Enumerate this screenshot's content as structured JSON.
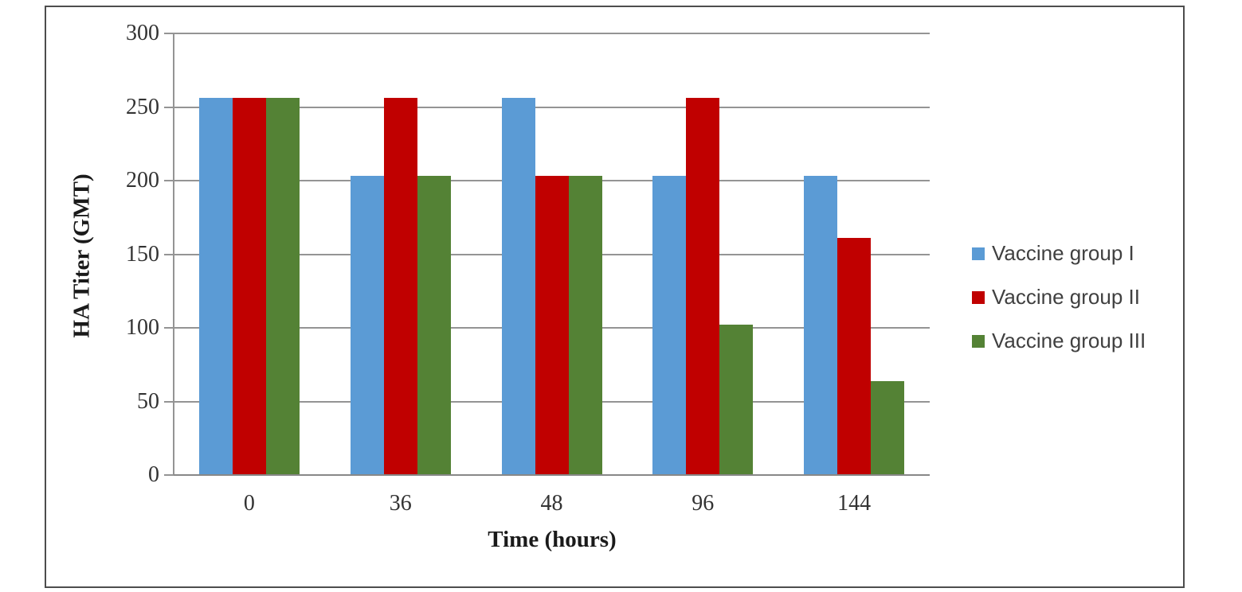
{
  "chart_data": {
    "type": "bar",
    "title": "",
    "xlabel": "Time (hours)",
    "ylabel": "HA Titer (GMT)",
    "categories": [
      "0",
      "36",
      "48",
      "96",
      "144"
    ],
    "series": [
      {
        "name": "Vaccine group I",
        "color": "#5B9BD5",
        "values": [
          256,
          203,
          256,
          203,
          203
        ]
      },
      {
        "name": "Vaccine group II",
        "color": "#C00000",
        "values": [
          256,
          256,
          203,
          256,
          161
        ]
      },
      {
        "name": "Vaccine group III",
        "color": "#548235",
        "values": [
          256,
          203,
          203,
          102,
          64
        ]
      }
    ],
    "ylim": [
      0,
      300
    ],
    "ytick_step": 50,
    "ytick_labels": [
      "0",
      "50",
      "100",
      "150",
      "200",
      "250",
      "300"
    ],
    "grid": true,
    "gridline_color": "#949494",
    "legend_position": "right",
    "frame_color": "#4d4d4d"
  }
}
